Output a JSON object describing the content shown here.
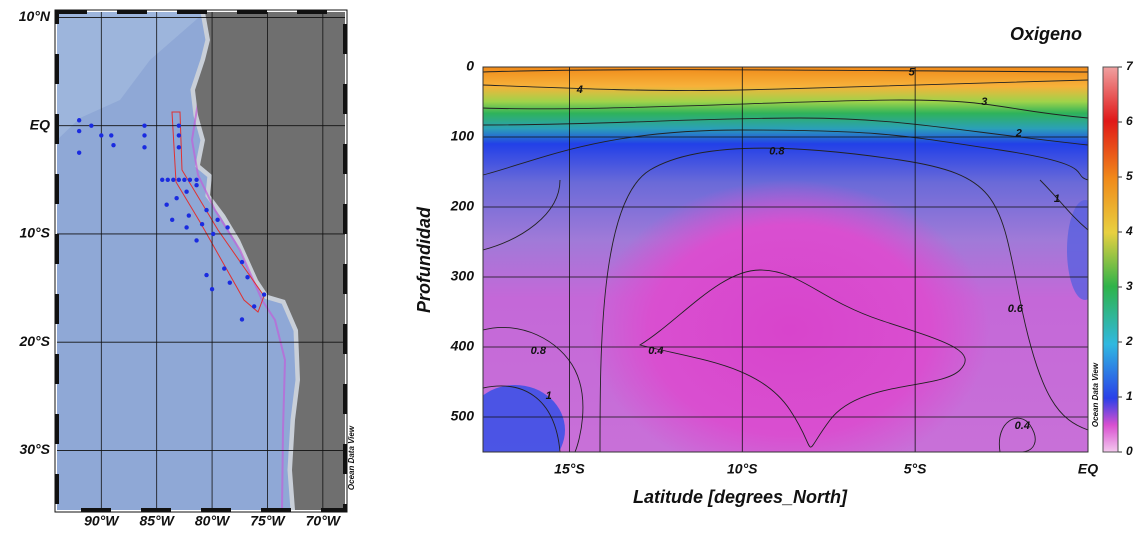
{
  "chart_data": [
    {
      "type": "map",
      "xlim": [
        -94,
        -68
      ],
      "ylim": [
        -35.5,
        10.5
      ],
      "xticks": [
        {
          "value": -90,
          "label": "90°W"
        },
        {
          "value": -85,
          "label": "85°W"
        },
        {
          "value": -80,
          "label": "80°W"
        },
        {
          "value": -75,
          "label": "75°W"
        },
        {
          "value": -70,
          "label": "70°W"
        }
      ],
      "yticks": [
        {
          "value": 10,
          "label": "10°N"
        },
        {
          "value": 0,
          "label": "EQ"
        },
        {
          "value": -10,
          "label": "10°S"
        },
        {
          "value": -20,
          "label": "20°S"
        },
        {
          "value": -30,
          "label": "30°S"
        }
      ],
      "grid": true,
      "color": "#1a2be0",
      "watermark": "Ocean Data View",
      "x": [
        -92.0,
        -92.0,
        -92.0,
        -90.9,
        -90.0,
        -89.1,
        -88.9,
        -86.1,
        -86.1,
        -86.1,
        -83.0,
        -83.0,
        -83.0,
        -84.5,
        -84.0,
        -83.5,
        -83.0,
        -82.5,
        -82.0,
        -81.4,
        -84.1,
        -83.2,
        -82.3,
        -81.4,
        -83.6,
        -82.1,
        -80.5,
        -82.3,
        -80.9,
        -79.5,
        -81.4,
        -79.9,
        -78.6,
        -80.5,
        -78.9,
        -77.3,
        -80.0,
        -78.4,
        -76.8,
        -77.3,
        -76.2,
        -75.3
      ],
      "y": [
        0.5,
        -0.5,
        -2.5,
        0,
        -0.9,
        -0.9,
        -1.8,
        0,
        -0.9,
        -2.0,
        0,
        -0.9,
        -2.0,
        -5.0,
        -5.0,
        -5.0,
        -5.0,
        -5.0,
        -5.0,
        -5.0,
        -7.3,
        -6.7,
        -6.1,
        -5.5,
        -8.7,
        -8.3,
        -7.8,
        -9.4,
        -9.1,
        -8.7,
        -10.6,
        -10.0,
        -9.4,
        -13.8,
        -13.2,
        -12.6,
        -15.1,
        -14.5,
        -14.0,
        -17.9,
        -16.7,
        -15.6
      ]
    },
    {
      "type": "contour",
      "title": "Oxigeno",
      "xlabel": "Latitude [degrees_North]",
      "ylabel": "Profundidad",
      "xlim": [
        -17.5,
        0
      ],
      "ylim": [
        550,
        0
      ],
      "xticks": [
        {
          "value": -15,
          "label": "15°S"
        },
        {
          "value": -10,
          "label": "10°S"
        },
        {
          "value": -5,
          "label": "5°S"
        },
        {
          "value": 0,
          "label": "EQ"
        }
      ],
      "yticks": [
        0,
        100,
        200,
        300,
        400,
        500
      ],
      "grid": true,
      "clim": [
        0,
        7
      ],
      "cticks": [
        0,
        1,
        2,
        3,
        4,
        5,
        6,
        7
      ],
      "watermark": "Ocean Data View",
      "contour_labels": [
        {
          "value": 5,
          "x": -5.1,
          "y": 8
        },
        {
          "value": 4,
          "x": -14.7,
          "y": 33
        },
        {
          "value": 3,
          "x": -3.0,
          "y": 50
        },
        {
          "value": 2,
          "x": -2.0,
          "y": 95
        },
        {
          "value": 0.8,
          "x": -9.0,
          "y": 121
        },
        {
          "value": 1,
          "x": -0.9,
          "y": 189
        },
        {
          "value": 0.6,
          "x": -2.1,
          "y": 346
        },
        {
          "value": 0.8,
          "x": -15.9,
          "y": 406
        },
        {
          "value": 0.4,
          "x": -12.5,
          "y": 406
        },
        {
          "value": 1,
          "x": -15.6,
          "y": 470
        },
        {
          "value": 0.4,
          "x": -1.9,
          "y": 513
        }
      ]
    }
  ]
}
